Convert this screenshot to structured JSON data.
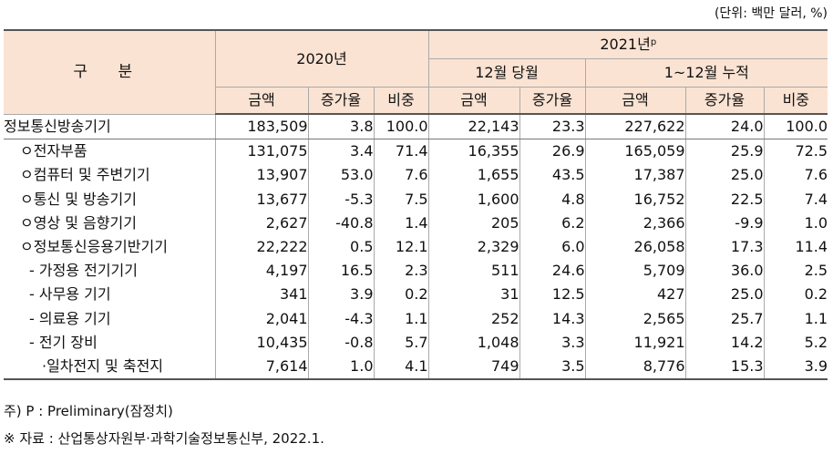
{
  "unit_note": "(단위: 백만 달러, %)",
  "header": {
    "category": "구 분",
    "y2020": "2020년",
    "y2021": "2021년",
    "y2021_sup": "p",
    "dec_month": "12월 당월",
    "jan_dec": "1~12월 누적",
    "amount": "금액",
    "growth": "증가율",
    "share": "비중"
  },
  "rows": [
    {
      "label": "정보통신방송기기",
      "level": 0,
      "a20": "183,509",
      "g20": "3.8",
      "s20": "100.0",
      "a21m": "22,143",
      "g21m": "23.3",
      "a21c": "227,622",
      "g21c": "24.0",
      "s21c": "100.0"
    },
    {
      "label": "ㅇ전자부품",
      "level": 1,
      "a20": "131,075",
      "g20": "3.4",
      "s20": "71.4",
      "a21m": "16,355",
      "g21m": "26.9",
      "a21c": "165,059",
      "g21c": "25.9",
      "s21c": "72.5"
    },
    {
      "label": "ㅇ컴퓨터 및 주변기기",
      "level": 1,
      "a20": "13,907",
      "g20": "53.0",
      "s20": "7.6",
      "a21m": "1,655",
      "g21m": "43.5",
      "a21c": "17,387",
      "g21c": "25.0",
      "s21c": "7.6"
    },
    {
      "label": "ㅇ통신 및 방송기기",
      "level": 1,
      "a20": "13,677",
      "g20": "-5.3",
      "s20": "7.5",
      "a21m": "1,600",
      "g21m": "4.8",
      "a21c": "16,752",
      "g21c": "22.5",
      "s21c": "7.4"
    },
    {
      "label": "ㅇ영상 및 음향기기",
      "level": 1,
      "a20": "2,627",
      "g20": "-40.8",
      "s20": "1.4",
      "a21m": "205",
      "g21m": "6.2",
      "a21c": "2,366",
      "g21c": "-9.9",
      "s21c": "1.0"
    },
    {
      "label": "ㅇ정보통신응용기반기기",
      "level": 1,
      "a20": "22,222",
      "g20": "0.5",
      "s20": "12.1",
      "a21m": "2,329",
      "g21m": "6.0",
      "a21c": "26,058",
      "g21c": "17.3",
      "s21c": "11.4"
    },
    {
      "label": "- 가정용 전기기기",
      "level": 2,
      "a20": "4,197",
      "g20": "16.5",
      "s20": "2.3",
      "a21m": "511",
      "g21m": "24.6",
      "a21c": "5,709",
      "g21c": "36.0",
      "s21c": "2.5"
    },
    {
      "label": "- 사무용 기기",
      "level": 2,
      "a20": "341",
      "g20": "3.9",
      "s20": "0.2",
      "a21m": "31",
      "g21m": "12.5",
      "a21c": "427",
      "g21c": "25.0",
      "s21c": "0.2"
    },
    {
      "label": "- 의료용 기기",
      "level": 2,
      "a20": "2,041",
      "g20": "-4.3",
      "s20": "1.1",
      "a21m": "252",
      "g21m": "14.3",
      "a21c": "2,565",
      "g21c": "25.7",
      "s21c": "1.1"
    },
    {
      "label": "- 전기 장비",
      "level": 2,
      "a20": "10,435",
      "g20": "-0.8",
      "s20": "5.7",
      "a21m": "1,048",
      "g21m": "3.3",
      "a21c": "11,921",
      "g21c": "14.2",
      "s21c": "5.2"
    },
    {
      "label": "·일차전지 및 축전지",
      "level": 3,
      "a20": "7,614",
      "g20": "1.0",
      "s20": "4.1",
      "a21m": "749",
      "g21m": "3.5",
      "a21c": "8,776",
      "g21c": "15.3",
      "s21c": "3.9"
    }
  ],
  "notes": {
    "preliminary": "주) P : Preliminary(잠정치)",
    "source": "※ 자료 : 산업통상자원부·과학기술정보통신부, 2022.1."
  }
}
